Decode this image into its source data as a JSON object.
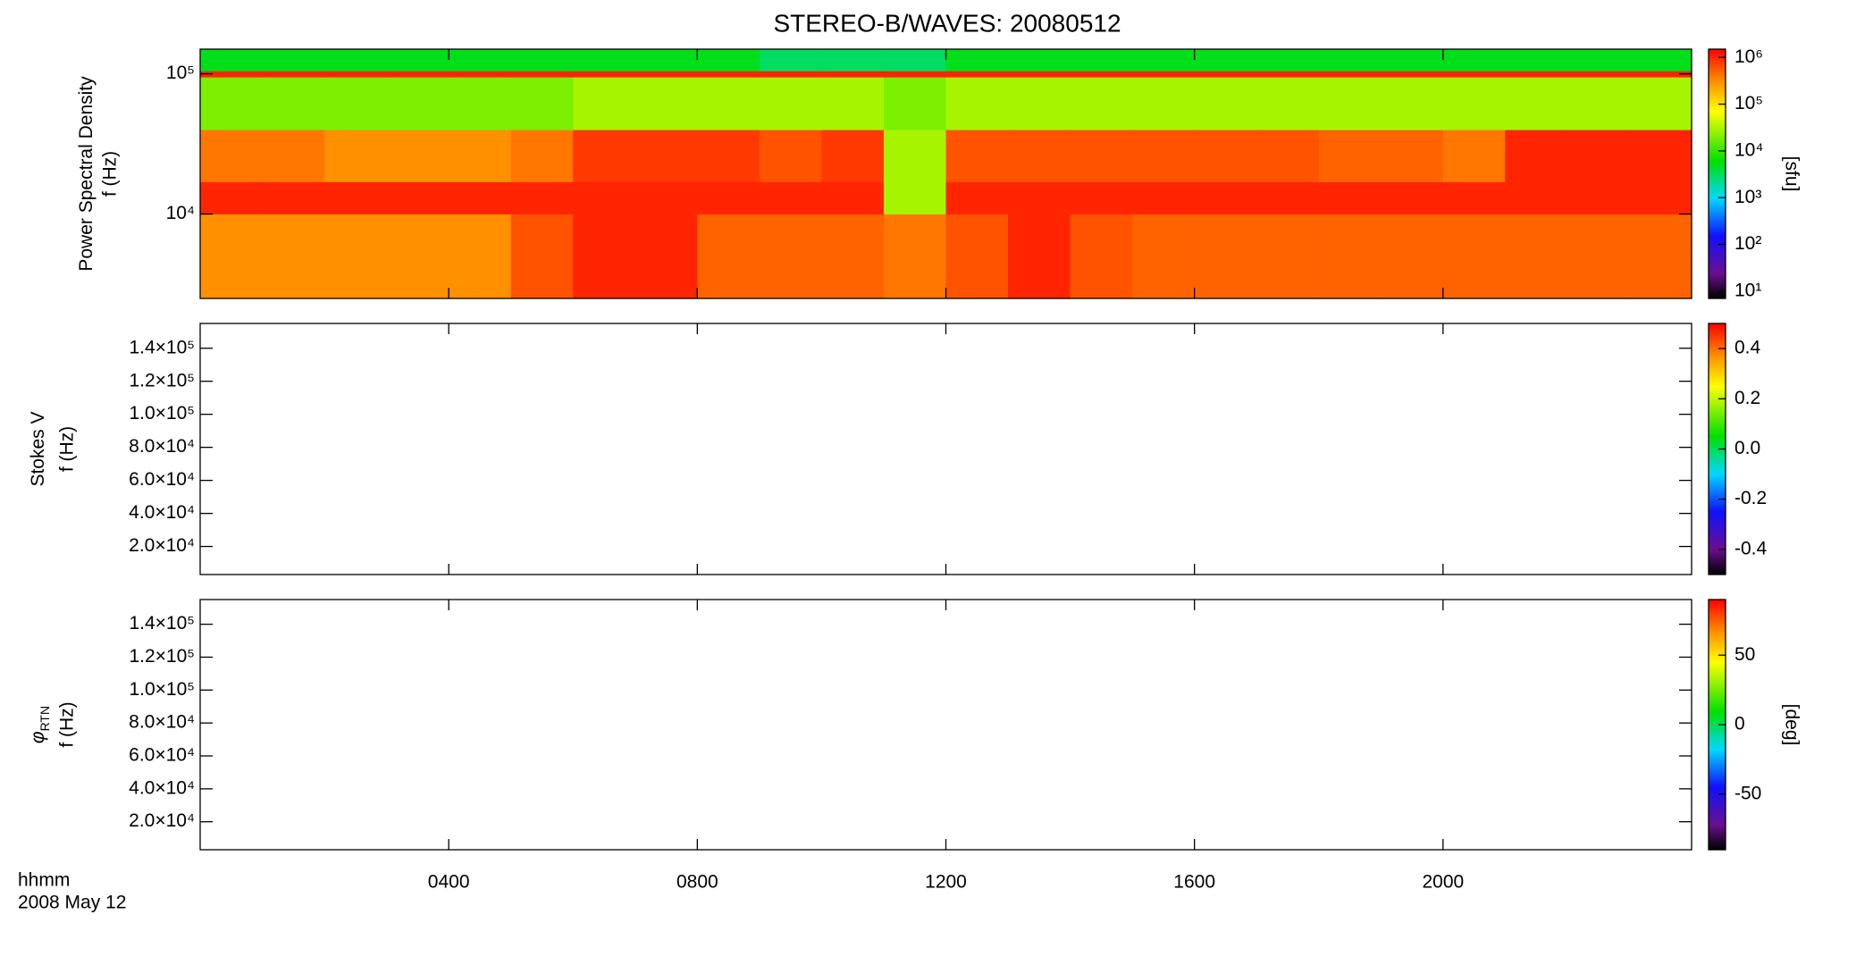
{
  "chart_data": [
    {
      "type": "heatmap",
      "title": "STEREO-B/WAVES: 20080512",
      "quantity": "Power Spectral Density",
      "ylabel": "f (Hz)",
      "x_bins": [
        0,
        1,
        2,
        3,
        4,
        5,
        6,
        7,
        8,
        9,
        10,
        11,
        12,
        13,
        14,
        15,
        16,
        17,
        18,
        19,
        20,
        21,
        22,
        23,
        24
      ],
      "y_bins": [
        2500,
        10000,
        17000,
        40000,
        95000,
        105000,
        150000
      ],
      "values": [
        [
          300000,
          300000,
          300000,
          300000,
          300000,
          600000,
          1000000,
          1000000,
          500000,
          500000,
          500000,
          400000,
          600000,
          1000000,
          600000,
          500000,
          500000,
          500000,
          500000,
          500000,
          500000,
          500000,
          500000,
          500000
        ],
        [
          1000000,
          1000000,
          1000000,
          1000000,
          1000000,
          1000000,
          1000000,
          1000000,
          1000000,
          1000000,
          1000000,
          30000,
          1000000,
          1000000,
          1000000,
          1000000,
          1000000,
          1000000,
          1000000,
          1000000,
          1000000,
          1000000,
          1000000,
          1000000
        ],
        [
          400000,
          400000,
          300000,
          300000,
          300000,
          400000,
          800000,
          800000,
          800000,
          600000,
          800000,
          30000,
          600000,
          600000,
          600000,
          600000,
          600000,
          600000,
          500000,
          500000,
          400000,
          1000000,
          1000000,
          1000000
        ],
        [
          20000,
          20000,
          20000,
          20000,
          20000,
          20000,
          30000,
          30000,
          30000,
          30000,
          30000,
          20000,
          30000,
          30000,
          30000,
          30000,
          30000,
          30000,
          30000,
          30000,
          30000,
          30000,
          30000,
          30000
        ],
        [
          1000000,
          1000000,
          1000000,
          1000000,
          1000000,
          1000000,
          1000000,
          1000000,
          1000000,
          1000000,
          1000000,
          1000000,
          1000000,
          1000000,
          1000000,
          1000000,
          1000000,
          1000000,
          1000000,
          1000000,
          1000000,
          1000000,
          1000000,
          1000000
        ],
        [
          5000,
          5000,
          5000,
          5000,
          5000,
          5000,
          5000,
          5000,
          5000,
          3000,
          3000,
          3000,
          5000,
          5000,
          5000,
          5000,
          5000,
          5000,
          5000,
          5000,
          5000,
          5000,
          5000,
          5000
        ]
      ],
      "xlim": [
        0,
        24
      ],
      "xticks": [
        {
          "value": 4,
          "label": "0400"
        },
        {
          "value": 8,
          "label": "0800"
        },
        {
          "value": 12,
          "label": "1200"
        },
        {
          "value": 16,
          "label": "1600"
        },
        {
          "value": 20,
          "label": "2000"
        }
      ],
      "ylog": true,
      "ylim": [
        2500,
        150000
      ],
      "yticks": [
        {
          "value": 10000,
          "label": "10⁴"
        },
        {
          "value": 100000,
          "label": "10⁵"
        }
      ],
      "colorbar": {
        "label": "[sfu]",
        "log": true,
        "lim": [
          7,
          1500000
        ],
        "ticks": [
          {
            "value": 10,
            "label": "10¹"
          },
          {
            "value": 100,
            "label": "10²"
          },
          {
            "value": 1000,
            "label": "10³"
          },
          {
            "value": 10000,
            "label": "10⁴"
          },
          {
            "value": 100000,
            "label": "10⁵"
          },
          {
            "value": 1000000,
            "label": "10⁶"
          }
        ]
      }
    },
    {
      "type": "heatmap",
      "quantity": "Stokes V",
      "ylabel": "f (Hz)",
      "xlim": [
        0,
        24
      ],
      "xticks": [
        {
          "value": 4,
          "label": "0400"
        },
        {
          "value": 8,
          "label": "0800"
        },
        {
          "value": 12,
          "label": "1200"
        },
        {
          "value": 16,
          "label": "1600"
        },
        {
          "value": 20,
          "label": "2000"
        }
      ],
      "ylim": [
        3000,
        155000
      ],
      "yticks": [
        {
          "value": 20000,
          "label": "2.0×10⁴"
        },
        {
          "value": 40000,
          "label": "4.0×10⁴"
        },
        {
          "value": 60000,
          "label": "6.0×10⁴"
        },
        {
          "value": 80000,
          "label": "8.0×10⁴"
        },
        {
          "value": 100000,
          "label": "1.0×10⁵"
        },
        {
          "value": 120000,
          "label": "1.2×10⁵"
        },
        {
          "value": 140000,
          "label": "1.4×10⁵"
        }
      ],
      "colorbar": {
        "lim": [
          -0.5,
          0.5
        ],
        "ticks": [
          -0.4,
          -0.2,
          {
            "value": 0,
            "label": "0.0"
          },
          0.2,
          0.4
        ]
      }
    },
    {
      "type": "heatmap",
      "quantity": "φ",
      "quantity_subscript": "RTN",
      "ylabel": "f (Hz)",
      "xlabel": "hhmm",
      "date": "2008 May 12",
      "xlim": [
        0,
        24
      ],
      "xticks": [
        {
          "value": 4,
          "label": "0400"
        },
        {
          "value": 8,
          "label": "0800"
        },
        {
          "value": 12,
          "label": "1200"
        },
        {
          "value": 16,
          "label": "1600"
        },
        {
          "value": 20,
          "label": "2000"
        }
      ],
      "ylim": [
        3000,
        155000
      ],
      "yticks": [
        {
          "value": 20000,
          "label": "2.0×10⁴"
        },
        {
          "value": 40000,
          "label": "4.0×10⁴"
        },
        {
          "value": 60000,
          "label": "6.0×10⁴"
        },
        {
          "value": 80000,
          "label": "8.0×10⁴"
        },
        {
          "value": 100000,
          "label": "1.0×10⁵"
        },
        {
          "value": 120000,
          "label": "1.2×10⁵"
        },
        {
          "value": 140000,
          "label": "1.4×10⁵"
        }
      ],
      "colorbar": {
        "label": "[deg]",
        "lim": [
          -90,
          90
        ],
        "ticks": [
          -50,
          0,
          50
        ]
      }
    }
  ]
}
